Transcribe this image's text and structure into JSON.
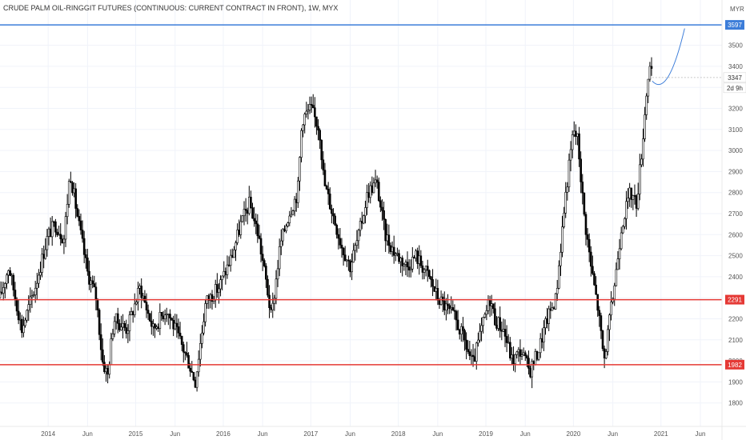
{
  "chart_data": {
    "type": "candlestick",
    "title": "CRUDE PALM OIL-RINGGIT FUTURES (CONTINUOUS: CURRENT CONTRACT IN FRONT), 1W, MYX",
    "currency": "MYR",
    "y_ticks": [
      1800,
      1900,
      2000,
      2100,
      2200,
      2300,
      2400,
      2500,
      2600,
      2700,
      2800,
      2900,
      3000,
      3100,
      3200,
      3300,
      3400,
      3500
    ],
    "ylim": [
      1700,
      3700
    ],
    "xlim": [
      2013.45,
      2021.45
    ],
    "x_ticks": [
      {
        "t": 2014.0,
        "label": "2014"
      },
      {
        "t": 2014.45,
        "label": "Jun"
      },
      {
        "t": 2015.0,
        "label": "2015"
      },
      {
        "t": 2015.45,
        "label": "Jun"
      },
      {
        "t": 2016.0,
        "label": "2016"
      },
      {
        "t": 2016.45,
        "label": "Jun"
      },
      {
        "t": 2017.0,
        "label": "2017"
      },
      {
        "t": 2017.45,
        "label": "Jun"
      },
      {
        "t": 2018.0,
        "label": "2018"
      },
      {
        "t": 2018.45,
        "label": "Jun"
      },
      {
        "t": 2019.0,
        "label": "2019"
      },
      {
        "t": 2019.45,
        "label": "Jun"
      },
      {
        "t": 2020.0,
        "label": "2020"
      },
      {
        "t": 2020.45,
        "label": "Jun"
      },
      {
        "t": 2021.0,
        "label": "2021"
      },
      {
        "t": 2021.45,
        "label": "Jun"
      }
    ],
    "price_path": [
      [
        2013.45,
        2300
      ],
      [
        2013.55,
        2450
      ],
      [
        2013.7,
        2150
      ],
      [
        2013.85,
        2350
      ],
      [
        2014.0,
        2600
      ],
      [
        2014.08,
        2650
      ],
      [
        2014.18,
        2580
      ],
      [
        2014.25,
        2900
      ],
      [
        2014.35,
        2650
      ],
      [
        2014.45,
        2420
      ],
      [
        2014.55,
        2300
      ],
      [
        2014.62,
        2000
      ],
      [
        2014.68,
        1930
      ],
      [
        2014.75,
        2200
      ],
      [
        2014.9,
        2150
      ],
      [
        2015.05,
        2350
      ],
      [
        2015.2,
        2150
      ],
      [
        2015.35,
        2250
      ],
      [
        2015.5,
        2100
      ],
      [
        2015.6,
        2000
      ],
      [
        2015.68,
        1900
      ],
      [
        2015.8,
        2280
      ],
      [
        2015.95,
        2350
      ],
      [
        2016.1,
        2500
      ],
      [
        2016.2,
        2650
      ],
      [
        2016.3,
        2750
      ],
      [
        2016.4,
        2600
      ],
      [
        2016.5,
        2350
      ],
      [
        2016.55,
        2200
      ],
      [
        2016.65,
        2550
      ],
      [
        2016.75,
        2700
      ],
      [
        2016.85,
        2800
      ],
      [
        2016.9,
        3150
      ],
      [
        2017.0,
        3200
      ],
      [
        2017.1,
        3100
      ],
      [
        2017.15,
        2850
      ],
      [
        2017.25,
        2700
      ],
      [
        2017.35,
        2550
      ],
      [
        2017.45,
        2450
      ],
      [
        2017.55,
        2600
      ],
      [
        2017.65,
        2800
      ],
      [
        2017.75,
        2850
      ],
      [
        2017.85,
        2600
      ],
      [
        2017.95,
        2520
      ],
      [
        2018.1,
        2450
      ],
      [
        2018.2,
        2500
      ],
      [
        2018.35,
        2400
      ],
      [
        2018.45,
        2300
      ],
      [
        2018.55,
        2250
      ],
      [
        2018.65,
        2200
      ],
      [
        2018.75,
        2100
      ],
      [
        2018.85,
        1980
      ],
      [
        2018.95,
        2150
      ],
      [
        2019.05,
        2300
      ],
      [
        2019.1,
        2200
      ],
      [
        2019.2,
        2150
      ],
      [
        2019.3,
        2000
      ],
      [
        2019.4,
        2050
      ],
      [
        2019.5,
        1950
      ],
      [
        2019.6,
        2050
      ],
      [
        2019.7,
        2200
      ],
      [
        2019.8,
        2300
      ],
      [
        2019.9,
        2750
      ],
      [
        2020.0,
        3100
      ],
      [
        2020.05,
        3050
      ],
      [
        2020.12,
        2700
      ],
      [
        2020.2,
        2450
      ],
      [
        2020.28,
        2250
      ],
      [
        2020.35,
        2000
      ],
      [
        2020.4,
        2150
      ],
      [
        2020.48,
        2400
      ],
      [
        2020.55,
        2650
      ],
      [
        2020.65,
        2800
      ],
      [
        2020.72,
        2750
      ],
      [
        2020.78,
        3000
      ],
      [
        2020.85,
        3350
      ],
      [
        2020.88,
        3400
      ],
      [
        2020.9,
        3330
      ]
    ],
    "projection": [
      [
        2020.9,
        3330
      ],
      [
        2021.0,
        3285
      ],
      [
        2021.12,
        3320
      ],
      [
        2021.27,
        3580
      ]
    ],
    "horizontal_lines": [
      {
        "value": 3597,
        "label": "3597",
        "color": "#3c7dd9"
      },
      {
        "value": 2291,
        "label": "2291",
        "color": "#e53935"
      },
      {
        "value": 1982,
        "label": "1982",
        "color": "#e53935"
      }
    ],
    "last_price": {
      "value": 3347,
      "label": "3347",
      "countdown": "2d 9h"
    },
    "candle_color": "#000000"
  }
}
